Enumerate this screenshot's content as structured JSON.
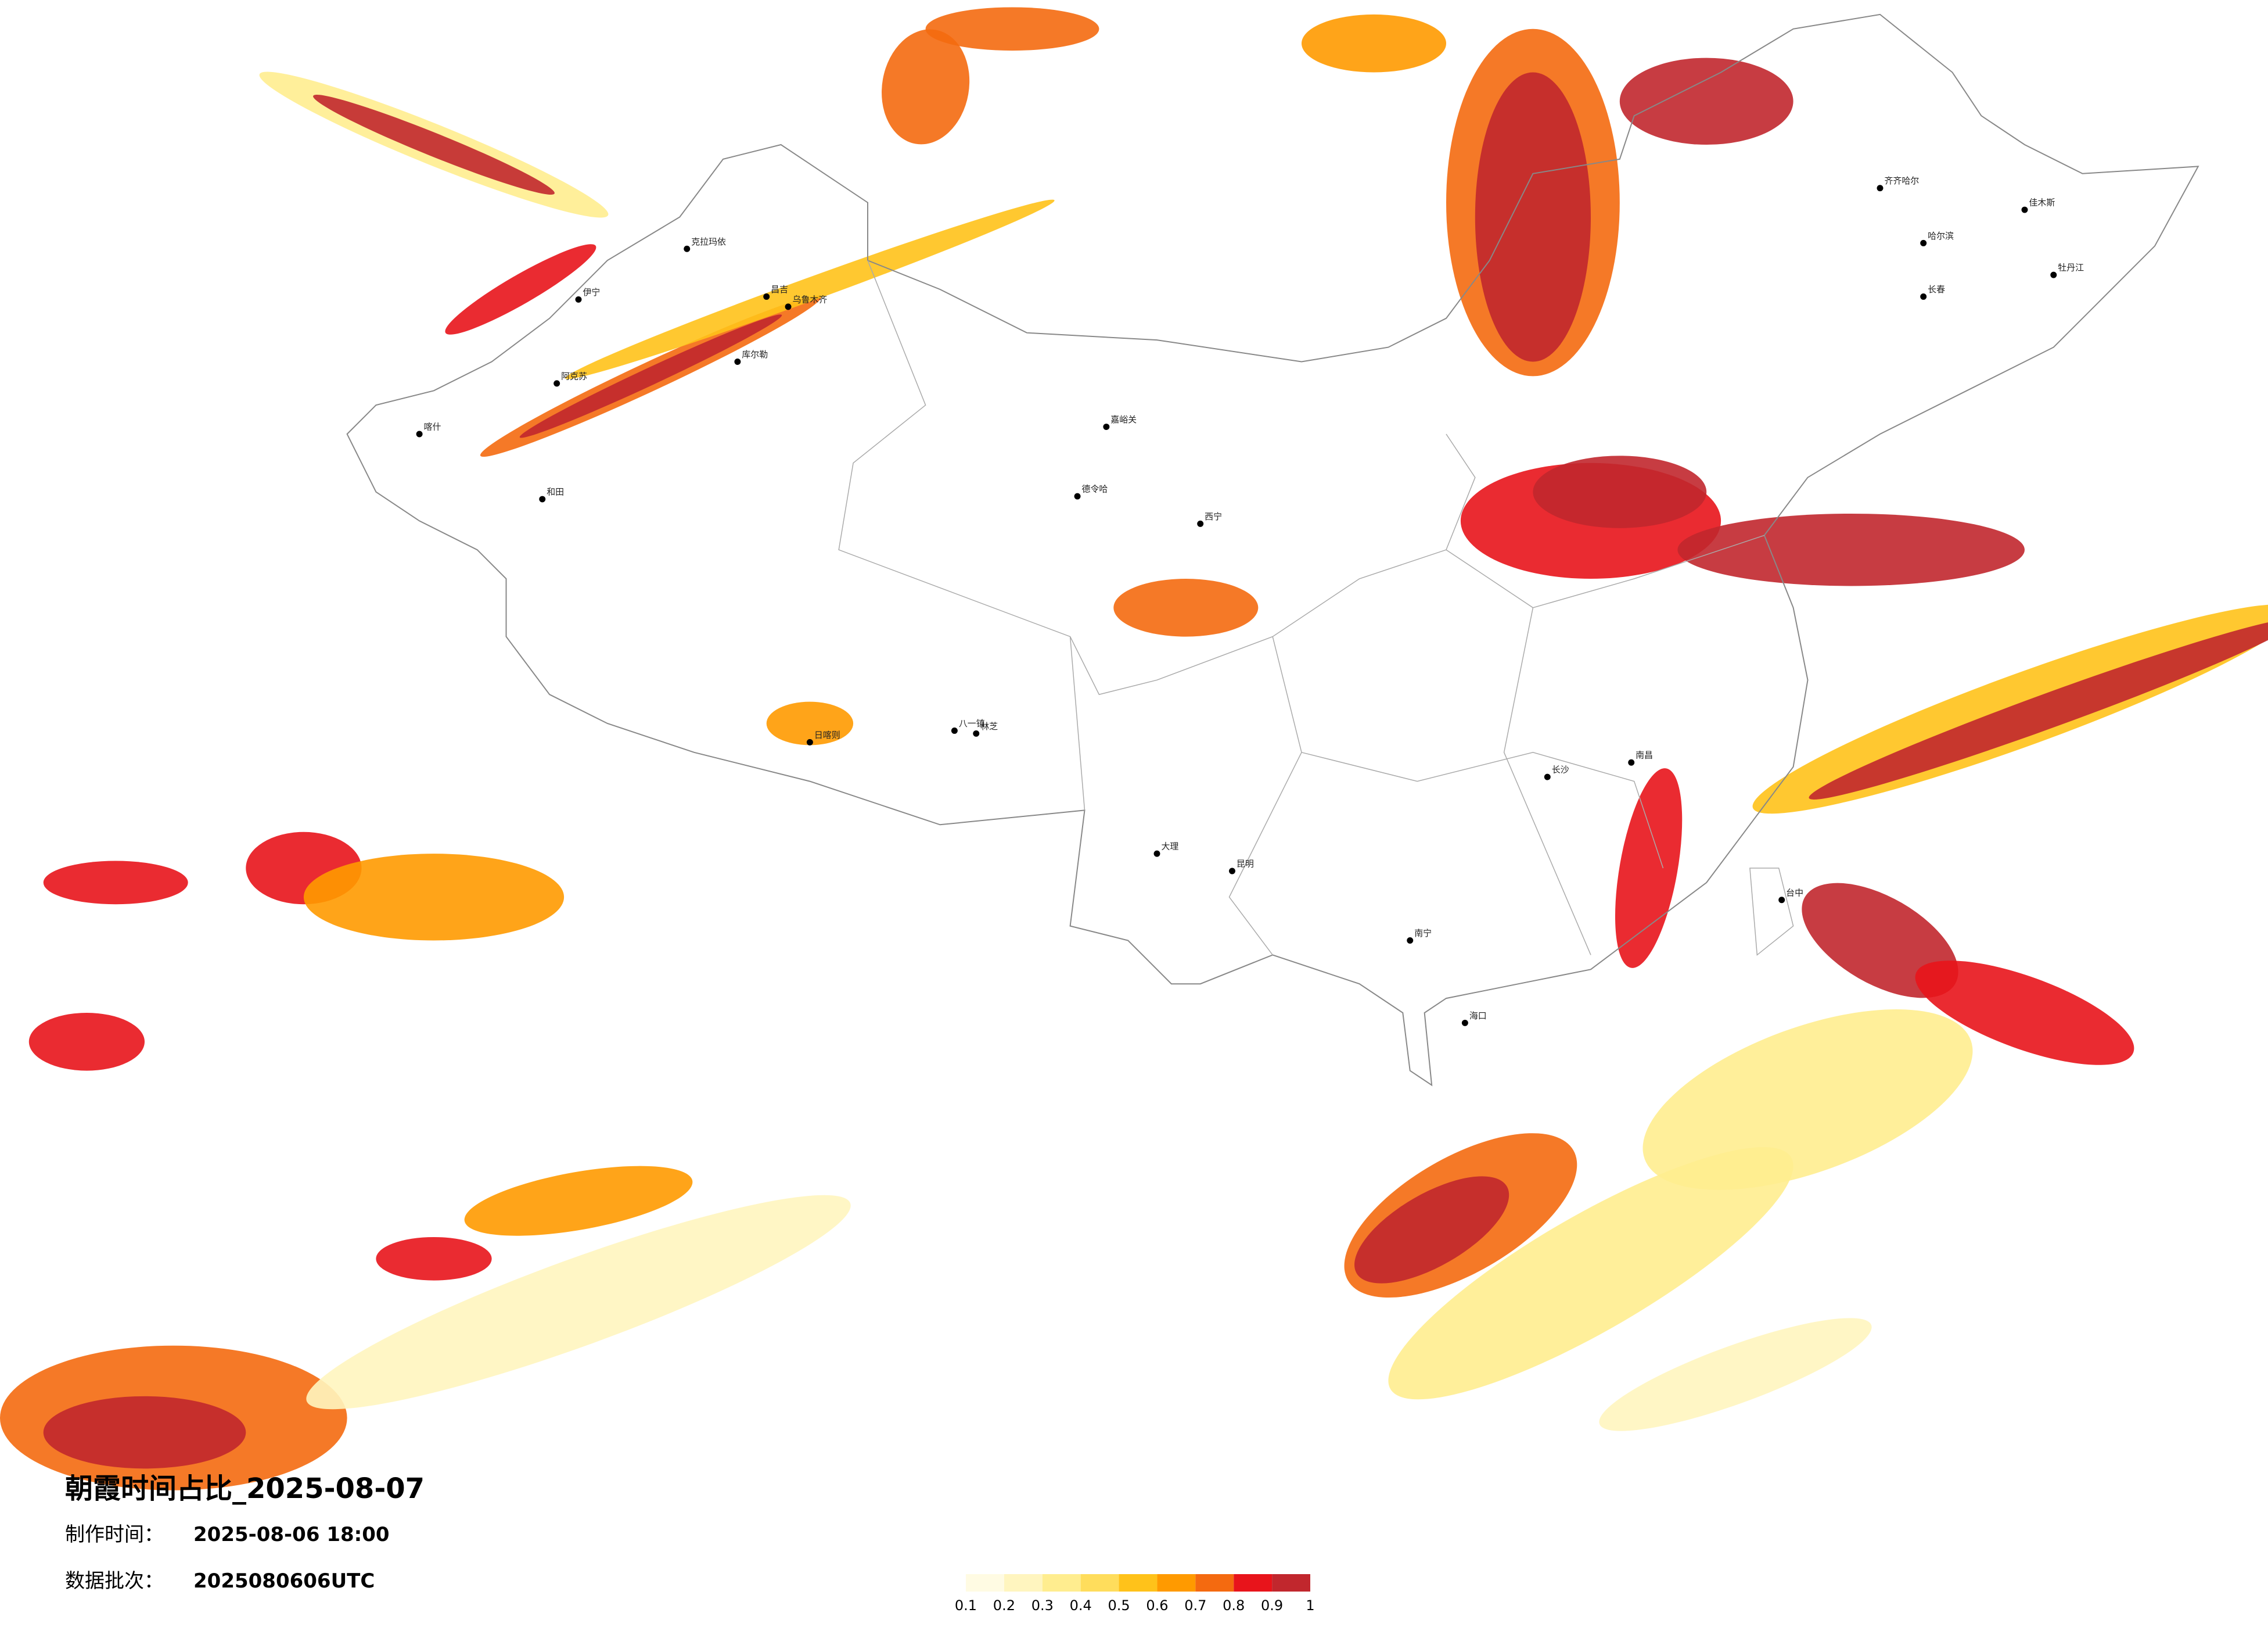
{
  "header": {
    "title": "朝霞时间占比_2025-08-07",
    "made_label": "制作时间：",
    "made_time": "2025-08-06 18:00",
    "batch_label": "数据批次：",
    "batch": "2025080606UTC"
  },
  "legend": {
    "ticks": [
      0.1,
      0.2,
      0.3,
      0.4,
      0.5,
      0.6,
      0.7,
      0.8,
      0.9,
      1
    ],
    "colors": [
      "#fffbe3",
      "#fff5bf",
      "#ffed8f",
      "#ffdd5c",
      "#ffc21a",
      "#ff9a00",
      "#f46a10",
      "#e8141b",
      "#c1272d"
    ]
  },
  "cities": [
    "伊宁",
    "克拉玛依",
    "昌吉",
    "乌鲁木齐",
    "库尔勒",
    "阿克苏",
    "和田",
    "喀什",
    "德令哈",
    "嘉峪关",
    "西宁",
    "日喀则",
    "林芝",
    "大理",
    "昆明",
    "南宁",
    "海口",
    "长沙",
    "南昌",
    "哈尔滨",
    "长春",
    "齐齐哈尔",
    "佳木斯",
    "台中",
    "牡丹江",
    "八一镇"
  ]
}
